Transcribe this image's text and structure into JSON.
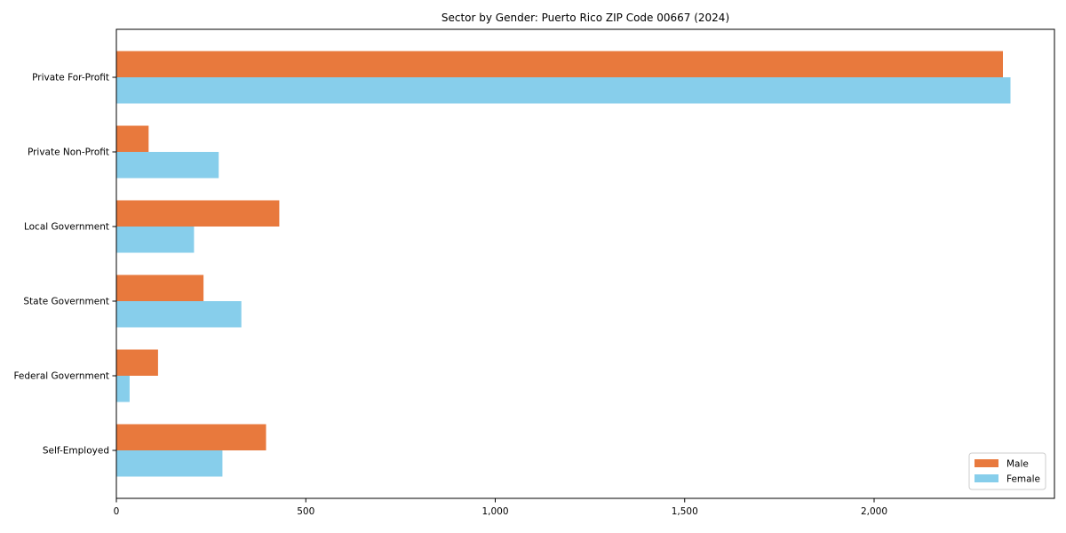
{
  "chart_data": {
    "type": "bar",
    "orientation": "horizontal",
    "title": "Sector by Gender: Puerto Rico ZIP Code 00667 (2024)",
    "categories": [
      "Private For-Profit",
      "Private Non-Profit",
      "Local Government",
      "State Government",
      "Federal Government",
      "Self-Employed"
    ],
    "series": [
      {
        "name": "Male",
        "color": "#e8793d",
        "values": [
          2340,
          85,
          430,
          230,
          110,
          395
        ]
      },
      {
        "name": "Female",
        "color": "#87ceeb",
        "values": [
          2360,
          270,
          205,
          330,
          35,
          280
        ]
      }
    ],
    "xlabel": "",
    "ylabel": "",
    "xticks": [
      0,
      500,
      1000,
      1500,
      2000
    ],
    "xtick_labels": [
      "0",
      "500",
      "1,000",
      "1,500",
      "2,000"
    ],
    "xlim": [
      0,
      2476
    ],
    "grid": false,
    "legend_position": "lower right",
    "legend_border_color": "#cccccc",
    "axis_color": "#000000",
    "background": "#ffffff"
  }
}
